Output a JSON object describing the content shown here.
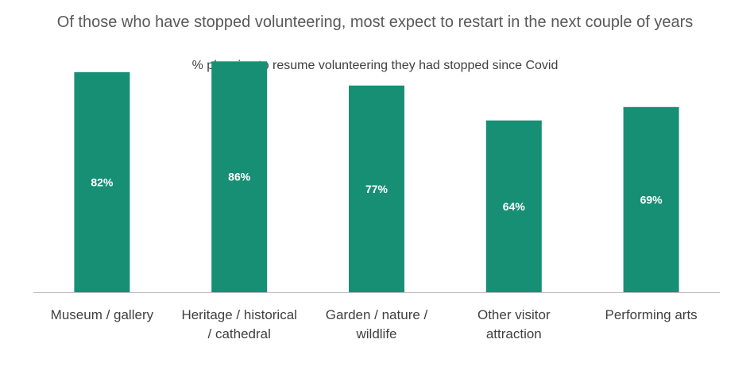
{
  "chart_data": {
    "type": "bar",
    "title": "Of those who have stopped volunteering, most expect to restart in the next couple of years",
    "subtitle": "%  planning to resume volunteering they had stopped since Covid",
    "categories": [
      [
        "Museum / gallery"
      ],
      [
        "Heritage / historical",
        "/ cathedral"
      ],
      [
        "Garden / nature /",
        "wildlife"
      ],
      [
        "Other visitor",
        "attraction"
      ],
      [
        "Performing arts"
      ]
    ],
    "values": [
      82,
      86,
      77,
      64,
      69
    ],
    "data_labels": [
      "82%",
      "86%",
      "77%",
      "64%",
      "69%"
    ],
    "bar_color": "#178f75",
    "ylim": [
      0,
      100
    ],
    "xlabel": "",
    "ylabel": "",
    "grid": false,
    "legend": false
  }
}
